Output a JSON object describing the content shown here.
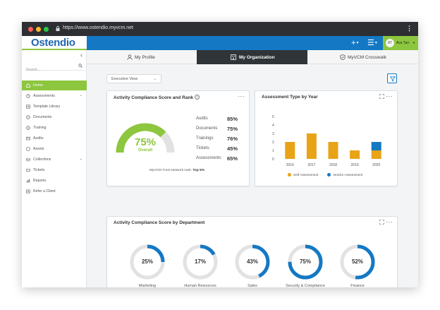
{
  "browser": {
    "url": "https://www.ostendio.myvcm.net"
  },
  "header": {
    "logo": "Ostendio",
    "add_icon": "plus-icon",
    "menu_icon": "hamburger-icon",
    "user": {
      "initials": "AT",
      "name": "Ava Tarr"
    },
    "colors": {
      "blue": "#1478c4",
      "green": "#8dc63f"
    }
  },
  "sidebar": {
    "search_placeholder": "Search...",
    "items": [
      {
        "label": "Home",
        "icon": "home-icon",
        "active": true
      },
      {
        "label": "Assessments",
        "icon": "clock-icon",
        "caret": true
      },
      {
        "label": "Template Library",
        "icon": "library-icon"
      },
      {
        "label": "Documents",
        "icon": "document-icon"
      },
      {
        "label": "Training",
        "icon": "training-icon"
      },
      {
        "label": "Audits",
        "icon": "audit-icon"
      },
      {
        "label": "Assets",
        "icon": "asset-icon"
      },
      {
        "label": "Collections",
        "icon": "collection-icon",
        "caret": true
      },
      {
        "label": "Tickets",
        "icon": "ticket-icon"
      },
      {
        "label": "Reports",
        "icon": "report-icon"
      },
      {
        "label": "Refer a Client",
        "icon": "refer-icon"
      }
    ]
  },
  "tabs": [
    {
      "label": "My Profile",
      "icon": "user-icon"
    },
    {
      "label": "My Organization",
      "icon": "building-icon",
      "active": true
    },
    {
      "label": "MyVCM Crosswalk",
      "icon": "shield-icon"
    }
  ],
  "view_select": {
    "value": "Executive View"
  },
  "compliance": {
    "title": "Activity Compliance Score and Rank",
    "overall": {
      "percent": 75,
      "label": "75%",
      "caption": "Overall"
    },
    "scores": [
      {
        "name": "Audits",
        "value": "85%"
      },
      {
        "name": "Documents",
        "value": "75%"
      },
      {
        "name": "Trainings",
        "value": "76%"
      },
      {
        "name": "Tickets",
        "value": "45%"
      },
      {
        "name": "Assessments",
        "value": "65%"
      }
    ],
    "trust_label": "MyVCM Trust Network rank:",
    "trust_rank": "Top 5%"
  },
  "assessment_chart": {
    "title": "Assessment Type by Year",
    "chart_data": {
      "type": "bar",
      "stacked": true,
      "categories": [
        "2016",
        "2017",
        "2018",
        "2019",
        "2020"
      ],
      "series": [
        {
          "name": "Self Assessment",
          "color": "#e8a317",
          "values": [
            2,
            3,
            2,
            1,
            1
          ]
        },
        {
          "name": "Vendor Assessment",
          "color": "#1478c4",
          "values": [
            0,
            0,
            0,
            0,
            1
          ]
        }
      ],
      "yticks": [
        "5",
        "4",
        "3",
        "2",
        "1",
        "0"
      ],
      "ylim": [
        0,
        5
      ],
      "legend": "bottom",
      "grid": false
    }
  },
  "department": {
    "title": "Activity Compliance Score by Department",
    "chart_data": {
      "type": "pie",
      "style": "donut",
      "categories": [
        "Marketing",
        "Human Resources",
        "Sales",
        "Security & Compliance",
        "Finance"
      ],
      "values": [
        25,
        17,
        43,
        75,
        52
      ],
      "labels": [
        "25%",
        "17%",
        "43%",
        "75%",
        "52%"
      ],
      "color": "#1478c4",
      "track_color": "#e2e2e2"
    }
  }
}
